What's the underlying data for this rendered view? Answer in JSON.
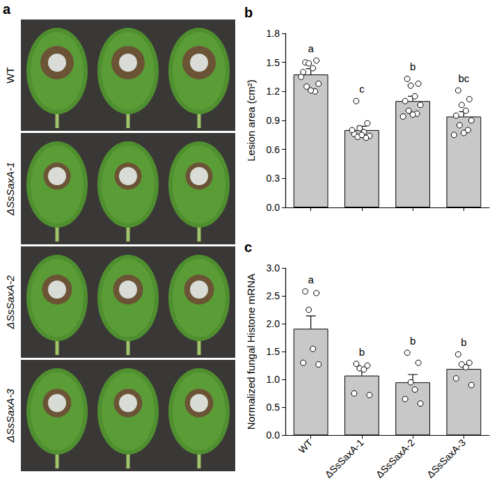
{
  "panel_a": {
    "label": "a",
    "rows": [
      "WT",
      "ΔSsSaxA-1",
      "ΔSsSaxA-2",
      "ΔSsSaxA-3"
    ]
  },
  "chart_data": [
    {
      "type": "bar",
      "title": "b",
      "categories": [
        "WT",
        "ΔSsSaxA-1",
        "ΔSsSaxA-2",
        "ΔSsSaxA-3"
      ],
      "values": [
        1.375,
        0.8,
        1.1,
        0.94
      ],
      "errors": [
        0.06,
        0.04,
        0.05,
        0.05
      ],
      "points": [
        [
          1.5,
          1.52,
          1.49,
          1.44,
          1.4,
          1.28,
          1.25,
          1.2,
          1.21,
          1.35
        ],
        [
          1.1,
          0.87,
          0.82,
          0.78,
          0.76,
          0.74,
          0.73,
          0.72,
          0.75,
          0.8
        ],
        [
          1.33,
          1.28,
          1.26,
          1.15,
          1.1,
          1.06,
          1.0,
          0.97,
          0.96,
          0.94
        ],
        [
          1.21,
          1.12,
          1.06,
          1.0,
          0.95,
          0.9,
          0.85,
          0.8,
          0.77,
          0.75
        ]
      ],
      "letters": [
        "a",
        "c",
        "b",
        "bc"
      ],
      "color": "#c8c8c8",
      "ylabel": "Lesion area (cm²)",
      "ylim": [
        0,
        1.8
      ],
      "yticks": [
        {
          "value": 0,
          "label": "0.0"
        },
        0.3,
        0.6,
        0.9,
        1.2,
        1.5,
        1.8
      ],
      "tick_labels": "y"
    },
    {
      "type": "bar",
      "title": "c",
      "categories": [
        "WT",
        "ΔSsSaxA-1",
        "ΔSsSaxA-2",
        "ΔSsSaxA-3"
      ],
      "values": [
        1.91,
        1.07,
        0.95,
        1.19
      ],
      "errors": [
        0.23,
        0.11,
        0.14,
        0.08
      ],
      "points": [
        [
          2.58,
          2.55,
          2.25,
          1.55,
          1.3,
          1.27
        ],
        [
          1.28,
          1.25,
          1.2,
          1.18,
          0.75,
          0.72
        ],
        [
          1.48,
          1.3,
          0.95,
          0.82,
          0.65,
          0.57
        ],
        [
          1.45,
          1.3,
          1.27,
          1.22,
          1.02,
          0.9
        ]
      ],
      "letters": [
        "a",
        "b",
        "b",
        "b"
      ],
      "color": "#c8c8c8",
      "ylabel": "Normalized fungal Histone mRNA",
      "ylim": [
        0,
        3.0
      ],
      "yticks": [
        {
          "value": 0,
          "label": "0.0"
        },
        0.5,
        {
          "value": 1,
          "label": "1.0"
        },
        1.5,
        {
          "value": 2,
          "label": "2.0"
        },
        2.5,
        {
          "value": 3,
          "label": "3.0"
        }
      ]
    }
  ]
}
